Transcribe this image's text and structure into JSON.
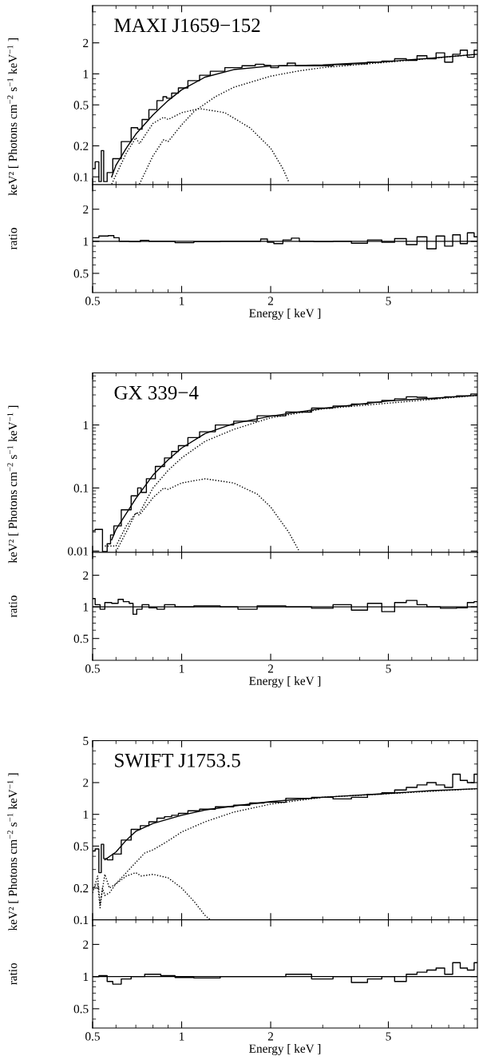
{
  "chart_data": [
    {
      "type": "line",
      "title": "MAXI J1659−152",
      "ylabel": "keV² [ Photons cm$^{−2}$ s$^{−1}$ keV$^{−1}$ ]",
      "log": "xy",
      "tick_labels": "y",
      "xlim": [
        0.5,
        10
      ],
      "xticks": [
        0.5,
        1,
        2,
        5
      ],
      "ylim": [
        0.084,
        4.6
      ],
      "yticks": [
        0.1,
        0.2,
        0.5,
        1,
        2
      ],
      "series": [
        {
          "type": "step",
          "color": "#000000",
          "x": [
            0.5,
            0.52,
            0.53,
            0.54,
            0.55,
            0.57,
            0.6,
            0.65,
            0.7,
            0.72,
            0.75,
            0.8,
            0.85,
            0.88,
            0.9,
            0.95,
            1,
            1.1,
            1.2,
            1.3,
            1.5,
            1.7,
            1.85,
            1.95,
            2.05,
            2.2,
            2.35,
            2.5,
            3,
            3.5,
            4,
            4.5,
            5,
            5.5,
            6,
            6.5,
            7,
            7.5,
            8,
            8.5,
            9,
            9.5,
            10
          ],
          "values": [
            0.12,
            0.14,
            0.09,
            0.18,
            0.09,
            0.11,
            0.15,
            0.22,
            0.3,
            0.29,
            0.36,
            0.45,
            0.55,
            0.6,
            0.58,
            0.65,
            0.73,
            0.86,
            0.97,
            1.06,
            1.15,
            1.2,
            1.24,
            1.21,
            1.15,
            1.2,
            1.27,
            1.2,
            1.2,
            1.23,
            1.25,
            1.3,
            1.33,
            1.4,
            1.35,
            1.5,
            1.4,
            1.6,
            1.3,
            1.55,
            1.7,
            1.45,
            1.7
          ]
        },
        {
          "color": "#000000",
          "line_style": "solid",
          "x": [
            0.58,
            0.6,
            0.65,
            0.7,
            0.8,
            0.9,
            1,
            1.2,
            1.5,
            2,
            3,
            5,
            7,
            10
          ],
          "values": [
            0.1,
            0.13,
            0.19,
            0.26,
            0.4,
            0.55,
            0.7,
            0.93,
            1.1,
            1.19,
            1.22,
            1.32,
            1.42,
            1.55
          ]
        },
        {
          "color": "#000000",
          "line_style": "dotted",
          "x": [
            0.58,
            0.65,
            0.7,
            0.72,
            0.8,
            0.87,
            0.9,
            1,
            1.15,
            1.4,
            1.7,
            2,
            2.2,
            2.3
          ],
          "values": [
            0.085,
            0.17,
            0.24,
            0.21,
            0.33,
            0.38,
            0.36,
            0.42,
            0.46,
            0.42,
            0.3,
            0.19,
            0.12,
            0.09
          ]
        },
        {
          "color": "#000000",
          "line_style": "dotted",
          "x": [
            0.72,
            0.8,
            0.87,
            0.9,
            1,
            1.1,
            1.3,
            1.5,
            2,
            2.5,
            3,
            5,
            10
          ],
          "values": [
            0.085,
            0.16,
            0.23,
            0.22,
            0.32,
            0.43,
            0.6,
            0.74,
            0.95,
            1.07,
            1.15,
            1.3,
            1.55
          ]
        }
      ]
    },
    {
      "type": "line",
      "ylabel": "ratio",
      "xlabel": "Energy [ keV ]",
      "log": "xy",
      "xlim": [
        0.5,
        10
      ],
      "xticks": [
        0.5,
        1,
        2,
        5
      ],
      "ylim": [
        0.33,
        3.4
      ],
      "yticks": [
        0.5,
        1,
        2
      ],
      "ref_lines": [
        {
          "axis": "y",
          "value": 1,
          "color": "#000000"
        }
      ],
      "series": [
        {
          "type": "step",
          "color": "#000000",
          "x": [
            0.5,
            0.55,
            0.58,
            0.6,
            0.63,
            0.7,
            0.75,
            0.8,
            0.9,
            1,
            1.2,
            1.5,
            1.8,
            1.9,
            2,
            2.1,
            2.3,
            2.4,
            2.6,
            3,
            3.5,
            4,
            4.5,
            5,
            5.5,
            6,
            6.5,
            7,
            7.5,
            8,
            8.5,
            9,
            9.5,
            10
          ],
          "values": [
            1.08,
            1.12,
            1.13,
            1.08,
            1.0,
            0.99,
            1.02,
            1.0,
            1.0,
            0.97,
            0.99,
            1.0,
            1.0,
            1.05,
            0.98,
            0.95,
            1.03,
            1.07,
            1.0,
            0.99,
            1.0,
            0.96,
            1.03,
            0.98,
            1.06,
            0.93,
            1.1,
            0.85,
            1.12,
            0.9,
            1.15,
            0.95,
            1.2,
            1.1
          ]
        }
      ]
    },
    {
      "type": "line",
      "title": "GX 339−4",
      "ylabel": "keV² [ Photons cm$^{−2}$ s$^{−1}$ keV$^{−1}$ ]",
      "log": "xy",
      "tick_labels": "y",
      "xlim": [
        0.5,
        10
      ],
      "xticks": [
        0.5,
        1,
        2,
        5
      ],
      "ylim": [
        0.0095,
        6.7
      ],
      "yticks": [
        0.01,
        0.1,
        1
      ],
      "series": [
        {
          "type": "step",
          "color": "#000000",
          "x": [
            0.5,
            0.52,
            0.53,
            0.55,
            0.57,
            0.58,
            0.6,
            0.65,
            0.7,
            0.72,
            0.74,
            0.78,
            0.85,
            0.9,
            0.95,
            1,
            1.1,
            1.2,
            1.4,
            1.6,
            2,
            2.5,
            3,
            3.5,
            4,
            4.5,
            5,
            5.5,
            6,
            6.5,
            7,
            7.5,
            8,
            9,
            10
          ],
          "values": [
            0.021,
            0.022,
            0.022,
            0.0098,
            0.013,
            0.018,
            0.025,
            0.045,
            0.075,
            0.1,
            0.085,
            0.14,
            0.22,
            0.3,
            0.38,
            0.47,
            0.63,
            0.78,
            1.0,
            1.15,
            1.4,
            1.6,
            1.85,
            2.0,
            2.15,
            2.3,
            2.45,
            2.6,
            2.8,
            2.75,
            2.6,
            2.7,
            2.8,
            2.9,
            3.1
          ]
        },
        {
          "color": "#000000",
          "line_style": "solid",
          "x": [
            0.58,
            0.6,
            0.7,
            0.8,
            0.9,
            1,
            1.2,
            1.5,
            2,
            3,
            5,
            7,
            10
          ],
          "values": [
            0.015,
            0.022,
            0.068,
            0.16,
            0.28,
            0.43,
            0.73,
            1.05,
            1.38,
            1.83,
            2.4,
            2.65,
            2.95
          ]
        },
        {
          "color": "#000000",
          "line_style": "dotted",
          "x": [
            0.55,
            0.6,
            0.65,
            0.7,
            0.72,
            0.8,
            0.87,
            0.9,
            1,
            1.2,
            1.5,
            1.8,
            2,
            2.3,
            2.5
          ],
          "values": [
            0.012,
            0.012,
            0.025,
            0.04,
            0.037,
            0.07,
            0.1,
            0.095,
            0.12,
            0.14,
            0.12,
            0.08,
            0.05,
            0.02,
            0.0098
          ]
        },
        {
          "color": "#000000",
          "line_style": "dotted",
          "x": [
            0.6,
            0.65,
            0.7,
            0.72,
            0.8,
            0.9,
            1,
            1.2,
            1.5,
            2,
            3,
            10
          ],
          "values": [
            0.0098,
            0.02,
            0.04,
            0.04,
            0.1,
            0.19,
            0.3,
            0.55,
            0.85,
            1.3,
            1.8,
            2.95
          ]
        }
      ]
    },
    {
      "type": "line",
      "ylabel": "ratio",
      "xlabel": "Energy [ keV ]",
      "log": "xy",
      "xlim": [
        0.5,
        10
      ],
      "xticks": [
        0.5,
        1,
        2,
        5
      ],
      "ylim": [
        0.31,
        3.3
      ],
      "yticks": [
        0.5,
        1,
        2
      ],
      "ref_lines": [
        {
          "axis": "y",
          "value": 1,
          "color": "#000000"
        }
      ],
      "series": [
        {
          "type": "step",
          "color": "#000000",
          "x": [
            0.5,
            0.52,
            0.54,
            0.56,
            0.6,
            0.62,
            0.65,
            0.68,
            0.69,
            0.72,
            0.75,
            0.8,
            0.85,
            0.9,
            1,
            1.2,
            1.5,
            1.6,
            2,
            2.5,
            3,
            3.5,
            4,
            4.5,
            5,
            5.5,
            6,
            6.5,
            7,
            8,
            9,
            9.5,
            10
          ],
          "values": [
            1.2,
            1.05,
            0.95,
            1.1,
            1.08,
            1.18,
            1.12,
            1.08,
            0.85,
            0.95,
            1.05,
            0.98,
            0.95,
            1.05,
            1.0,
            1.02,
            1.0,
            0.95,
            1.02,
            1.0,
            0.97,
            1.05,
            0.93,
            1.08,
            0.9,
            1.1,
            1.15,
            1.05,
            1.0,
            0.97,
            0.98,
            1.1,
            1.12
          ]
        }
      ]
    },
    {
      "type": "line",
      "title": "SWIFT J1753.5",
      "ylabel": "keV² [ Photons cm$^{−2}$ s$^{−1}$ keV$^{−1}$ ]",
      "log": "xy",
      "tick_labels": "y",
      "xlim": [
        0.5,
        10
      ],
      "xticks": [
        0.5,
        1,
        2,
        5
      ],
      "ylim": [
        0.1,
        5
      ],
      "yticks": [
        0.1,
        0.2,
        0.5,
        1,
        2,
        5
      ],
      "series": [
        {
          "type": "step",
          "color": "#000000",
          "x": [
            0.5,
            0.52,
            0.53,
            0.54,
            0.55,
            0.57,
            0.6,
            0.65,
            0.7,
            0.75,
            0.8,
            0.85,
            0.9,
            0.95,
            1,
            1.1,
            1.2,
            1.4,
            1.6,
            1.8,
            2,
            2.5,
            3,
            3.5,
            4,
            4.5,
            5,
            5.5,
            6,
            6.5,
            7,
            7.5,
            8,
            8.5,
            9,
            9.5,
            10
          ],
          "values": [
            0.45,
            0.47,
            0.28,
            0.52,
            0.38,
            0.37,
            0.42,
            0.57,
            0.72,
            0.78,
            0.85,
            0.92,
            0.95,
            0.98,
            1.02,
            1.08,
            1.12,
            1.18,
            1.22,
            1.28,
            1.3,
            1.42,
            1.45,
            1.4,
            1.45,
            1.55,
            1.6,
            1.7,
            1.8,
            1.9,
            2.0,
            1.9,
            1.8,
            2.4,
            2.1,
            2.0,
            2.4
          ]
        },
        {
          "color": "#000000",
          "line_style": "solid",
          "x": [
            0.55,
            0.6,
            0.65,
            0.7,
            0.8,
            1,
            1.2,
            1.5,
            2,
            3,
            5,
            7,
            10
          ],
          "values": [
            0.37,
            0.44,
            0.57,
            0.69,
            0.82,
            0.98,
            1.1,
            1.2,
            1.32,
            1.45,
            1.58,
            1.68,
            1.75
          ]
        },
        {
          "color": "#000000",
          "line_style": "dotted",
          "x": [
            0.5,
            0.52,
            0.53,
            0.55,
            0.57,
            0.6,
            0.65,
            0.7,
            0.73,
            0.8,
            0.9,
            1,
            1.1,
            1.2,
            1.25
          ],
          "values": [
            0.18,
            0.26,
            0.14,
            0.27,
            0.2,
            0.22,
            0.26,
            0.28,
            0.26,
            0.27,
            0.25,
            0.2,
            0.15,
            0.11,
            0.1
          ]
        },
        {
          "color": "#000000",
          "line_style": "dotted",
          "x": [
            0.5,
            0.52,
            0.53,
            0.54,
            0.55,
            0.57,
            0.6,
            0.7,
            0.75,
            0.8,
            0.9,
            1,
            1.2,
            1.5,
            2,
            3,
            10
          ],
          "values": [
            0.2,
            0.22,
            0.13,
            0.2,
            0.17,
            0.18,
            0.22,
            0.35,
            0.43,
            0.46,
            0.56,
            0.68,
            0.85,
            1.05,
            1.25,
            1.45,
            1.75
          ]
        }
      ]
    },
    {
      "type": "line",
      "ylabel": "ratio",
      "xlabel": "Energy [ keV ]",
      "log": "xy",
      "xlim": [
        0.5,
        10
      ],
      "xticks": [
        0.5,
        1,
        2,
        5
      ],
      "ylim": [
        0.33,
        3.4
      ],
      "yticks": [
        0.5,
        1,
        2
      ],
      "ref_lines": [
        {
          "axis": "y",
          "value": 1,
          "color": "#000000"
        }
      ],
      "series": [
        {
          "type": "step",
          "color": "#000000",
          "x": [
            0.5,
            0.55,
            0.57,
            0.6,
            0.65,
            0.7,
            0.8,
            0.9,
            1,
            1.2,
            1.5,
            2,
            2.5,
            3,
            3.5,
            4,
            4.5,
            5,
            5.5,
            6,
            6.5,
            7,
            7.5,
            8,
            8.5,
            9,
            9.5,
            10
          ],
          "values": [
            1.0,
            1.02,
            0.9,
            0.85,
            0.95,
            1.0,
            1.05,
            1.02,
            0.98,
            0.97,
            1.0,
            1.0,
            1.05,
            0.95,
            1.0,
            0.88,
            0.95,
            1.0,
            0.9,
            1.05,
            1.1,
            1.15,
            1.2,
            1.05,
            1.35,
            1.2,
            1.15,
            1.35
          ]
        }
      ]
    }
  ]
}
